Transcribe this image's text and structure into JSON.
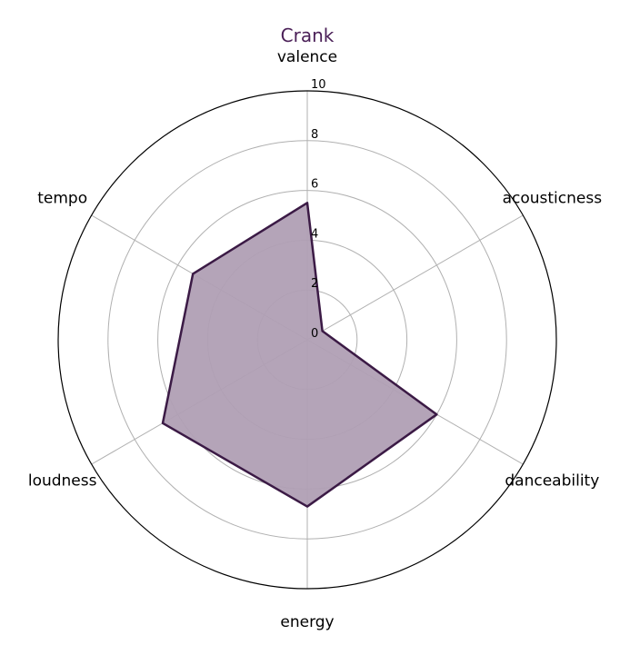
{
  "chart_data": {
    "type": "radar",
    "title": "Crank",
    "axes": [
      "valence",
      "acousticness",
      "danceability",
      "energy",
      "loudness",
      "tempo"
    ],
    "values": [
      5.5,
      0.7,
      6.0,
      6.7,
      6.7,
      5.3
    ],
    "rlim": [
      0,
      10
    ],
    "radial_ticks": [
      "0",
      "2",
      "4",
      "6",
      "8",
      "10"
    ],
    "grid": true,
    "colors": {
      "line": "#3b1a45",
      "fill": "#b09fb4",
      "title": "#4a1f57",
      "grid": "#b0b0b0",
      "frame": "#000000"
    }
  }
}
